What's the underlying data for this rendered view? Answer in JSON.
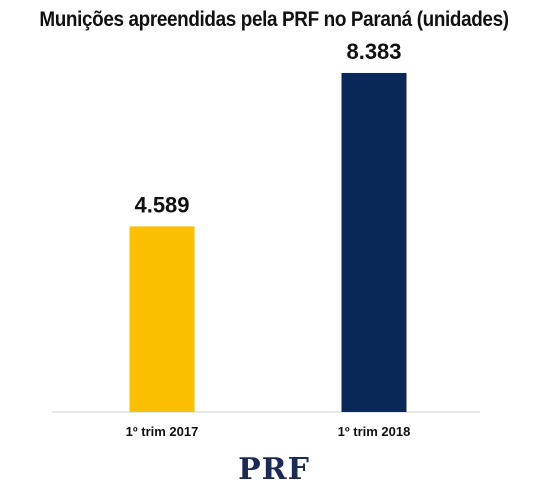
{
  "chart_data": {
    "type": "bar",
    "title": "Munições apreendidas pela PRF no Paraná (unidades)",
    "categories": [
      "1º trim 2017",
      "1º trim 2018"
    ],
    "values": [
      4589,
      8383
    ],
    "value_labels": [
      "4.589",
      "8.383"
    ],
    "colors": [
      "#fbbf00",
      "#0a2857"
    ],
    "ylim": [
      0,
      9000
    ],
    "grid": false,
    "xlabel": "",
    "ylabel": ""
  },
  "logo": {
    "text": "PRF"
  }
}
